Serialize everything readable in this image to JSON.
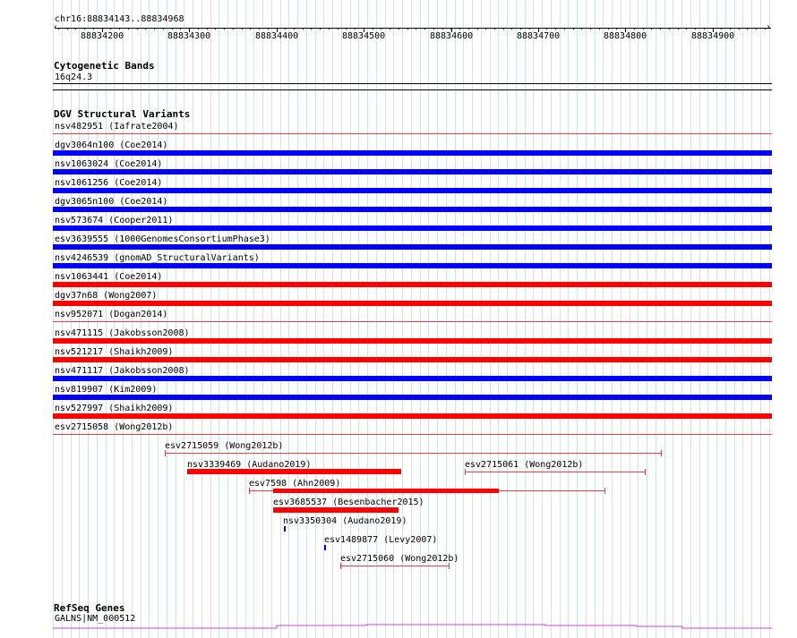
{
  "ruler": {
    "title": "chr16:88834143..88834968",
    "ticks": [
      "88834200",
      "88834300",
      "88834400",
      "88834500",
      "88834600",
      "88834700",
      "88834800",
      "88834900"
    ]
  },
  "cyto": {
    "title": "Cytogenetic Bands",
    "band": "16q24.3"
  },
  "dgv": {
    "title": "DGV Structural Variants",
    "colors": {
      "loss": "#ff0000",
      "gain": "#0000ff",
      "complex_line": "#e0404a"
    },
    "rows": [
      {
        "label": "nsv482951 (Iafrate2004)",
        "type": "line"
      },
      {
        "label": "dgv3064n100 (Coe2014)",
        "type": "gain"
      },
      {
        "label": "nsv1063024 (Coe2014)",
        "type": "gain"
      },
      {
        "label": "nsv1061256 (Coe2014)",
        "type": "gain"
      },
      {
        "label": "dgv3065n100 (Coe2014)",
        "type": "gain"
      },
      {
        "label": "nsv573674 (Cooper2011)",
        "type": "gain"
      },
      {
        "label": "esv3639555 (1000GenomesConsortiumPhase3)",
        "type": "gain"
      },
      {
        "label": "nsv4246539 (gnomAD_StructuralVariants)",
        "type": "gain"
      },
      {
        "label": "nsv1063441 (Coe2014)",
        "type": "loss"
      },
      {
        "label": "dgv37n68 (Wong2007)",
        "type": "loss"
      },
      {
        "label": "nsv952071 (Dogan2014)",
        "type": "line"
      },
      {
        "label": "nsv471115 (Jakobsson2008)",
        "type": "loss"
      },
      {
        "label": "nsv521217 (Shaikh2009)",
        "type": "loss"
      },
      {
        "label": "nsv471117 (Jakobsson2008)",
        "type": "gain"
      },
      {
        "label": "nsv819907 (Kim2009)",
        "type": "gain"
      },
      {
        "label": "nsv527997 (Shaikh2009)",
        "type": "loss"
      },
      {
        "label": "esv2715058 (Wong2012b)",
        "type": "line"
      }
    ],
    "partial": [
      {
        "label": "esv2715059 (Wong2012b)",
        "type": "line"
      },
      {
        "label": "nsv3339469 (Audano2019)",
        "type": "loss"
      },
      {
        "label": "esv2715061 (Wong2012b)",
        "type": "line"
      },
      {
        "label": "esv7598 (Ahn2009)",
        "type": "mixed"
      },
      {
        "label": "esv3685537 (Besenbacher2015)",
        "type": "loss"
      },
      {
        "label": "nsv3350304 (Audano2019)",
        "type": "gain"
      },
      {
        "label": "esv1489877 (Levy2007)",
        "type": "gain"
      },
      {
        "label": "esv2715060 (Wong2012b)",
        "type": "line"
      }
    ]
  },
  "refseq": {
    "title": "RefSeq Genes",
    "gene": "GALNS|NM_000512",
    "color": "#cc44cc"
  }
}
